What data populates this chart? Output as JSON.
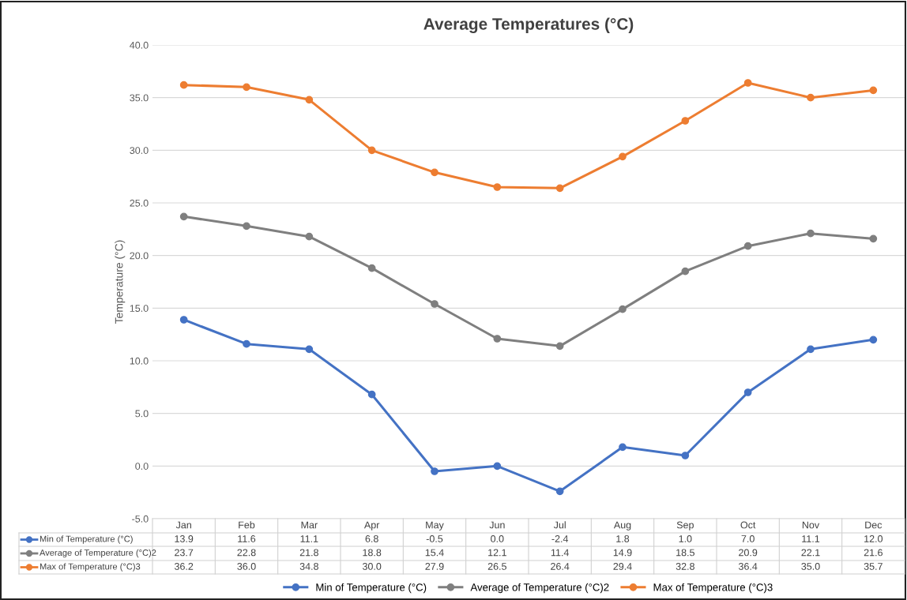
{
  "chart_data": {
    "type": "line",
    "title": "Average Temperatures (°C)",
    "ylabel": "Temperature (°C)",
    "categories": [
      "Jan",
      "Feb",
      "Mar",
      "Apr",
      "May",
      "Jun",
      "Jul",
      "Aug",
      "Sep",
      "Oct",
      "Nov",
      "Dec"
    ],
    "series": [
      {
        "name": "Min of Temperature (°C)",
        "color": "#4472c4",
        "values": [
          13.9,
          11.6,
          11.1,
          6.8,
          -0.5,
          0.0,
          -2.4,
          1.8,
          1.0,
          7.0,
          11.1,
          12.0
        ],
        "value_labels": [
          "13.9",
          "11.6",
          "11.1",
          "6.8",
          "-0.5",
          "0.0",
          "-2.4",
          "1.8",
          "1.0",
          "7.0",
          "11.1",
          "12.0"
        ]
      },
      {
        "name": "Average of Temperature (°C)2",
        "color": "#7f7f7f",
        "values": [
          23.7,
          22.8,
          21.8,
          18.8,
          15.4,
          12.1,
          11.4,
          14.9,
          18.5,
          20.9,
          22.1,
          21.6
        ],
        "value_labels": [
          "23.7",
          "22.8",
          "21.8",
          "18.8",
          "15.4",
          "12.1",
          "11.4",
          "14.9",
          "18.5",
          "20.9",
          "22.1",
          "21.6"
        ]
      },
      {
        "name": "Max of Temperature (°C)3",
        "color": "#ed7d31",
        "values": [
          36.2,
          36.0,
          34.8,
          30.0,
          27.9,
          26.5,
          26.4,
          29.4,
          32.8,
          36.4,
          35.0,
          35.7
        ],
        "value_labels": [
          "36.2",
          "36.0",
          "34.8",
          "30.0",
          "27.9",
          "26.5",
          "26.4",
          "29.4",
          "32.8",
          "36.4",
          "35.0",
          "35.7"
        ]
      }
    ],
    "ylim": [
      -5,
      40
    ],
    "yticks": [
      {
        "value": -5,
        "label": "-5.0"
      },
      {
        "value": 0,
        "label": "0.0"
      },
      {
        "value": 5,
        "label": "5.0"
      },
      {
        "value": 10,
        "label": "10.0"
      },
      {
        "value": 15,
        "label": "15.0"
      },
      {
        "value": 20,
        "label": "20.0"
      },
      {
        "value": 25,
        "label": "25.0"
      },
      {
        "value": 30,
        "label": "30.0"
      },
      {
        "value": 35,
        "label": "35.0"
      },
      {
        "value": 40,
        "label": "40.0"
      }
    ],
    "grid": "y",
    "legend": "bottom",
    "marker": "circle",
    "line_style": "solid",
    "tick_labels": "y"
  }
}
